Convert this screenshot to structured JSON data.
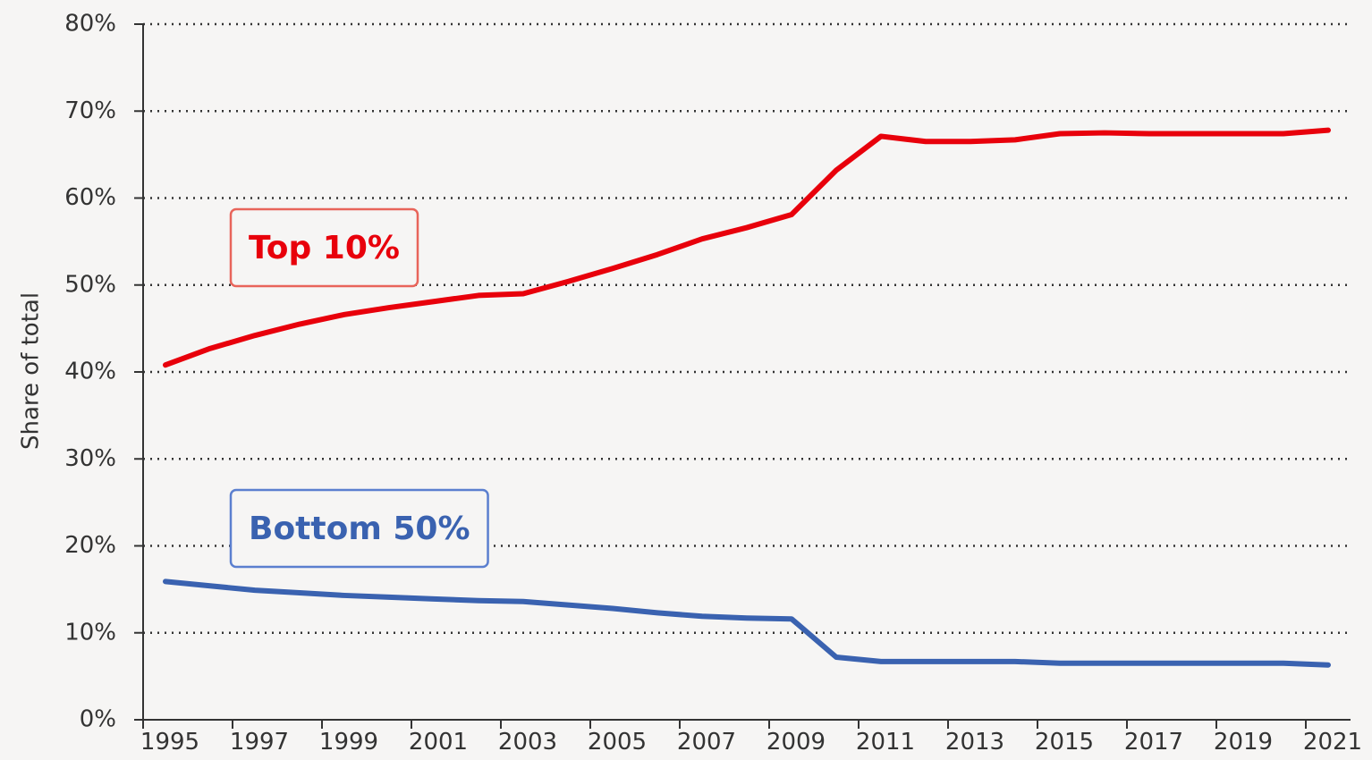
{
  "chart_data": {
    "type": "line",
    "y_label": "Share of total",
    "x": [
      1995,
      1996,
      1997,
      1998,
      1999,
      2000,
      2001,
      2002,
      2003,
      2004,
      2005,
      2006,
      2007,
      2008,
      2009,
      2010,
      2011,
      2012,
      2013,
      2014,
      2015,
      2016,
      2017,
      2018,
      2019,
      2020,
      2021
    ],
    "series": [
      {
        "name": "Top 10%",
        "color": "#e8000b",
        "box_color": "#e8645a",
        "values": [
          40.8,
          42.7,
          44.2,
          45.5,
          46.6,
          47.4,
          48.1,
          48.8,
          49.0,
          50.4,
          51.9,
          53.5,
          55.3,
          56.6,
          58.1,
          63.2,
          67.1,
          66.5,
          66.5,
          66.7,
          67.4,
          67.5,
          67.4,
          67.4,
          67.4,
          67.4,
          67.8
        ]
      },
      {
        "name": "Bottom 50%",
        "color": "#3a62b0",
        "box_color": "#5b7fcf",
        "values": [
          15.9,
          15.4,
          14.9,
          14.6,
          14.3,
          14.1,
          13.9,
          13.7,
          13.6,
          13.2,
          12.8,
          12.3,
          11.9,
          11.7,
          11.6,
          7.2,
          6.7,
          6.7,
          6.7,
          6.7,
          6.5,
          6.5,
          6.5,
          6.5,
          6.5,
          6.5,
          6.3
        ]
      }
    ],
    "xlim": [
      1994.5,
      2021.5
    ],
    "xticks": [
      1995,
      1997,
      1999,
      2001,
      2003,
      2005,
      2007,
      2009,
      2011,
      2013,
      2015,
      2017,
      2019,
      2021
    ],
    "ylim": [
      0,
      80
    ],
    "yticks": [
      {
        "value": 0,
        "label": "0%"
      },
      {
        "value": 10,
        "label": "10%"
      },
      {
        "value": 20,
        "label": "20%"
      },
      {
        "value": 30,
        "label": "30%"
      },
      {
        "value": 40,
        "label": "40%"
      },
      {
        "value": 50,
        "label": "50%"
      },
      {
        "value": 60,
        "label": "60%"
      },
      {
        "value": 70,
        "label": "70%"
      },
      {
        "value": 80,
        "label": "80%"
      }
    ],
    "grid": true
  }
}
